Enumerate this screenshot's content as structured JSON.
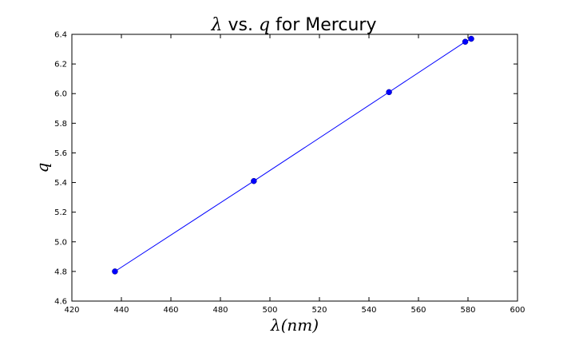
{
  "chart_data": {
    "type": "line",
    "title": {
      "prefix_math": "λ",
      "middle": " vs. ",
      "middle_math": "q",
      "suffix": " for Mercury"
    },
    "xlabel": "λ(nm)",
    "ylabel": "q",
    "xlim": [
      420,
      600
    ],
    "ylim": [
      4.6,
      6.4
    ],
    "xticks": [
      420,
      440,
      460,
      480,
      500,
      520,
      540,
      560,
      580,
      600
    ],
    "yticks": [
      4.6,
      4.8,
      5.0,
      5.2,
      5.4,
      5.6,
      5.8,
      6.0,
      6.2,
      6.4
    ],
    "xtick_labels": [
      "420",
      "440",
      "460",
      "480",
      "500",
      "520",
      "540",
      "560",
      "580",
      "600"
    ],
    "ytick_labels": [
      "4.6",
      "4.8",
      "5.0",
      "5.2",
      "5.4",
      "5.6",
      "5.8",
      "6.0",
      "6.2",
      "6.4"
    ],
    "grid": false,
    "series": [
      {
        "color": "#0000ff",
        "marker": "circle",
        "x": [
          437.4,
          493.5,
          548.1,
          578.9,
          581.3
        ],
        "y": [
          4.8,
          5.41,
          6.01,
          6.35,
          6.37
        ]
      }
    ]
  }
}
